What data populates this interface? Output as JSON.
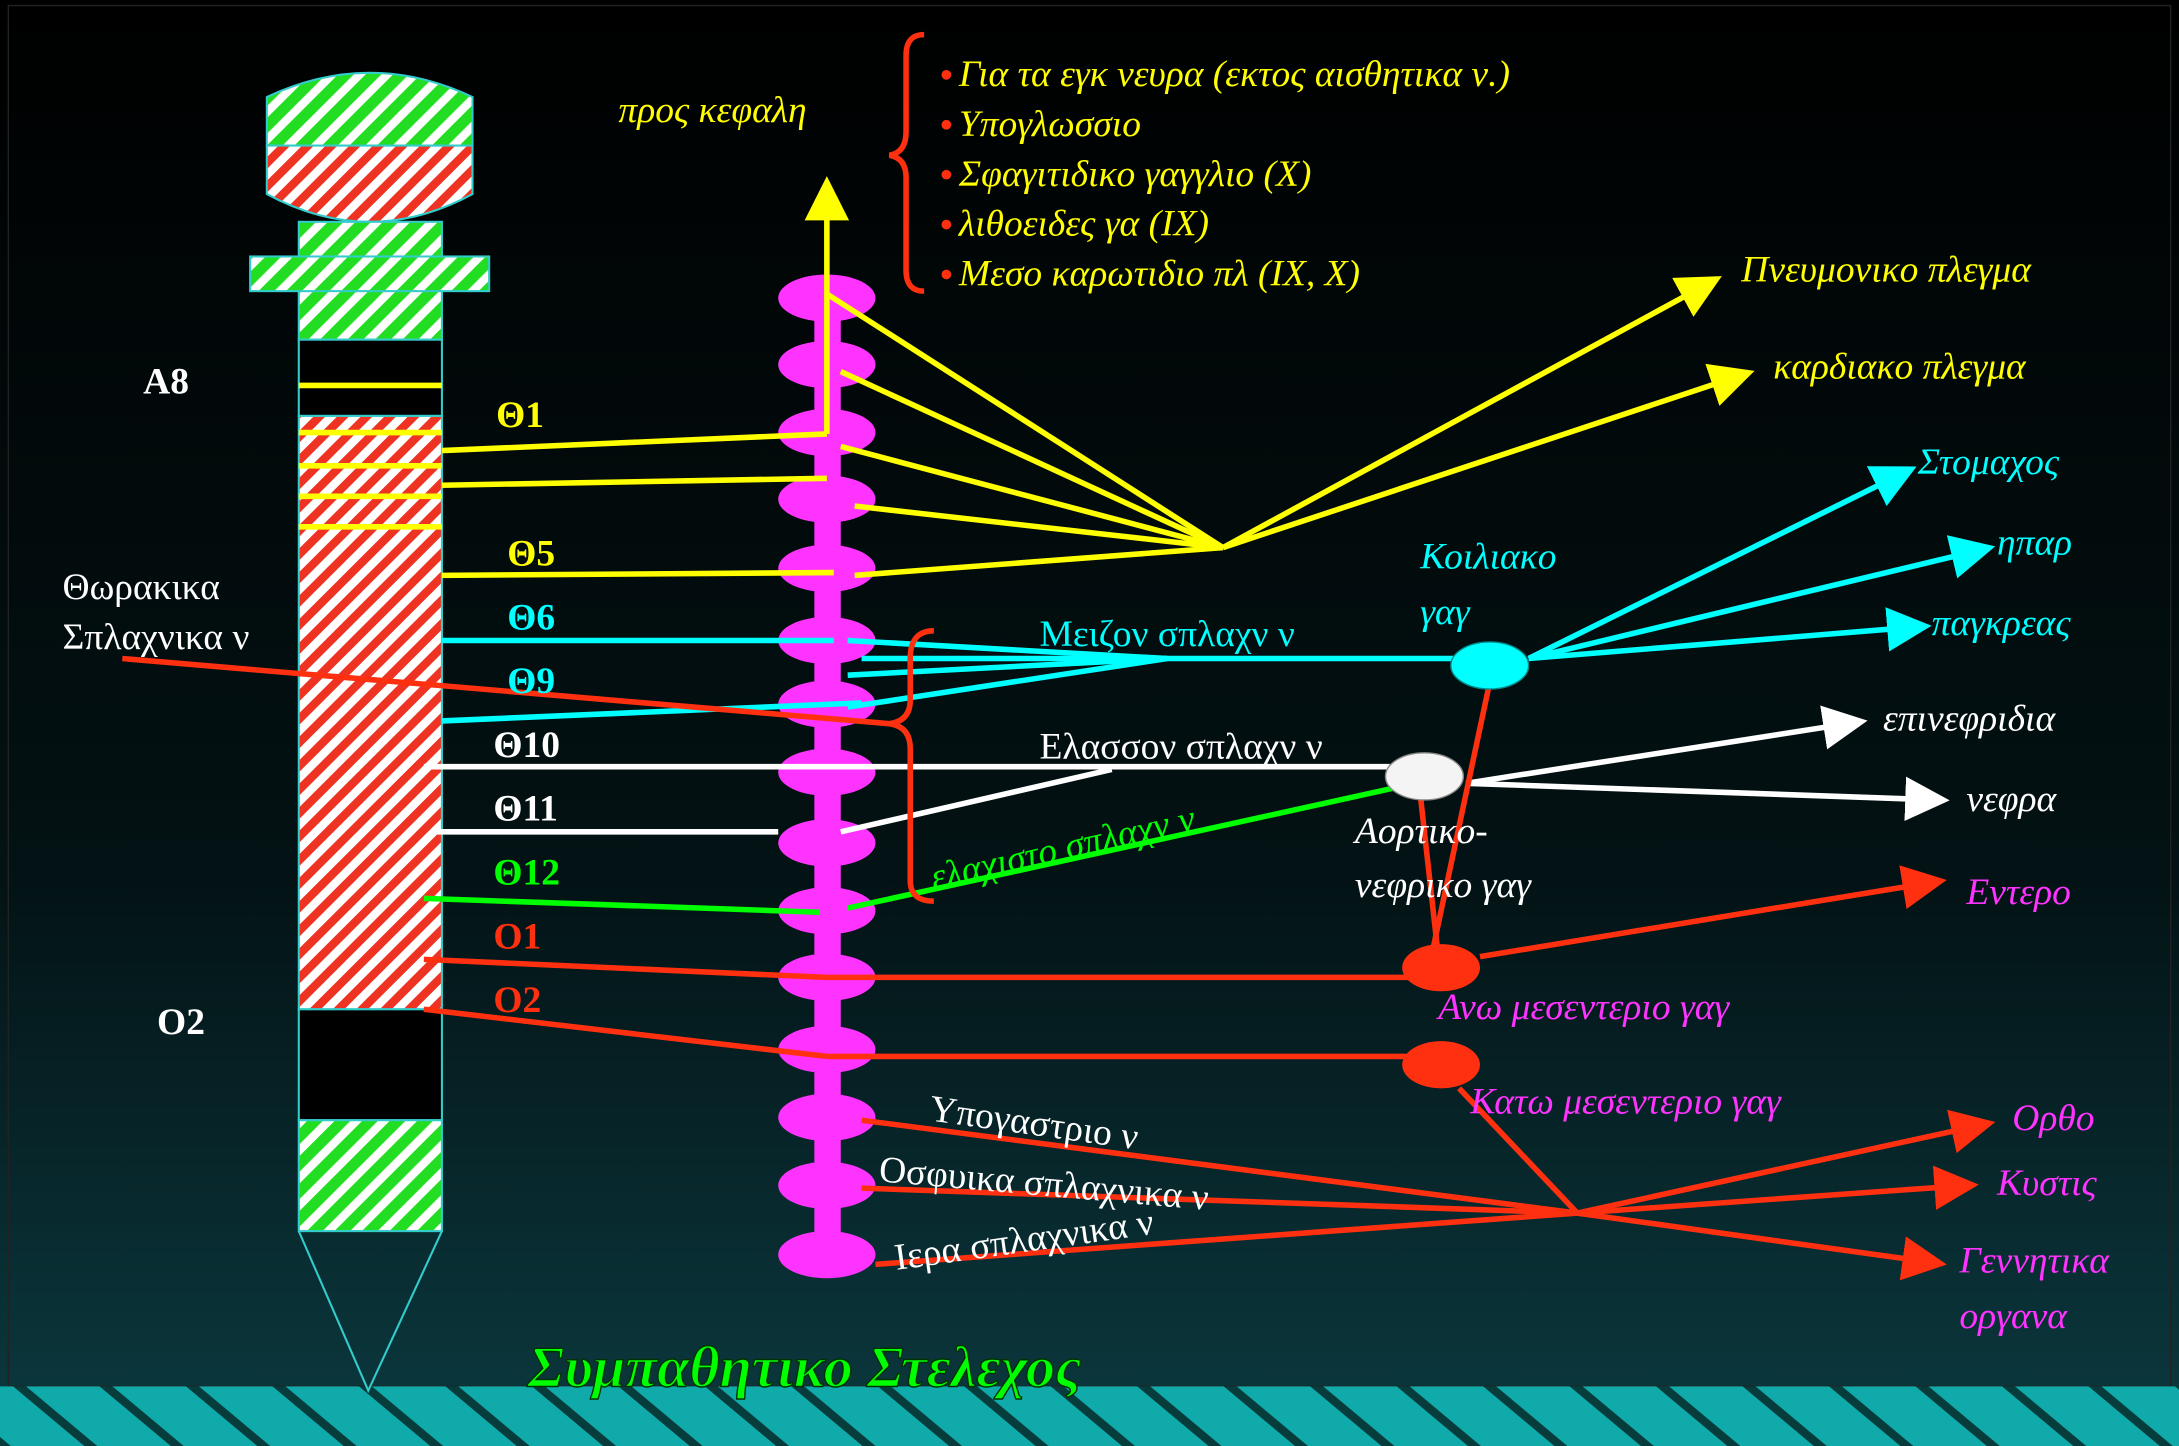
{
  "head": {
    "label": "προς κεφαλη",
    "items": [
      "Για τα εγκ νευρα (εκτος αισθητικα ν.)",
      "Υπογλωσσιο",
      "Σφαγιτιδικο γαγγλιο (Χ)",
      "λιθοειδες γα (ΙΧ)",
      "Μεσο καρωτιδιο πλ (ΙΧ, Χ)"
    ]
  },
  "left_labels": [
    "Α8",
    "Ο2"
  ],
  "segments": [
    "Θ1",
    "Θ5",
    "Θ6",
    "Θ9",
    "Θ10",
    "Θ11",
    "Θ12",
    "Ο1",
    "Ο2"
  ],
  "thoracic_splanchnic": [
    "Θωρακικα",
    "Σπλαχνικα ν"
  ],
  "nerves": [
    "Μειζον σπλαχν ν",
    "Ελασσον σπλαχν ν",
    "ελαχιστο σπλαχν ν",
    "Υπογαστριο ν",
    "Οσφυικα σπλαχνικα ν",
    "Ιερα σπλαχνικα ν"
  ],
  "ganglia": {
    "celiac": [
      "Κοιλιακο",
      "γαγ"
    ],
    "aorticorenal": [
      "Αορτικο-",
      "νεφρικο γαγ"
    ],
    "superior_mesenteric": "Ανω μεσεντεριο γαγ",
    "inferior_mesenteric": "Κατω μεσεντεριο γαγ"
  },
  "targets": [
    "Πνευμονικο πλεγμα",
    "καρδιακο πλεγμα",
    "Στομαχος",
    "ηπαρ",
    "παγκρεας",
    "επινεφριδια",
    "νεφρα",
    "Εντερο",
    "Ορθο",
    "Κυστις"
  ],
  "genitals": [
    "Γεννητικα",
    "οργανα"
  ],
  "title": "Συμπαθητικο Στελεχος"
}
